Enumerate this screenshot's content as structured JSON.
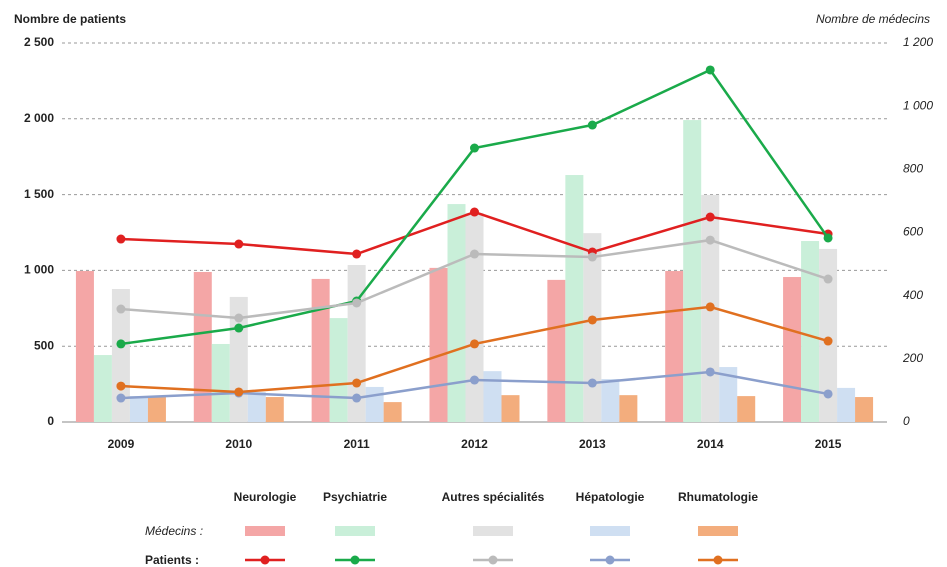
{
  "chart_data": {
    "type": "combo",
    "y_label": "Nombre de patients",
    "y2_label": "Nombre de médecins",
    "categories": [
      "2009",
      "2010",
      "2011",
      "2012",
      "2013",
      "2014",
      "2015"
    ],
    "ylim": [
      0,
      2500
    ],
    "yticks": [
      0,
      500,
      {
        "value": 1000,
        "label": "1 000"
      },
      {
        "value": 1500,
        "label": "1 500"
      },
      {
        "value": 2000,
        "label": "2 000"
      },
      {
        "value": 2500,
        "label": "2 500"
      }
    ],
    "y2lim": [
      0,
      1200
    ],
    "y2ticks": [
      0,
      200,
      400,
      600,
      800,
      {
        "value": 1000,
        "label": "1 000"
      },
      {
        "value": 1200,
        "label": "1 200"
      }
    ],
    "grid": true,
    "legend_rows": [
      "Médecins :",
      "Patients :"
    ],
    "series": [
      {
        "name": "Neurologie",
        "color": "#e02020",
        "bar_color": "#f4a6a6",
        "values": [
          1207,
          1174,
          1108,
          1385,
          1121,
          1352,
          1240
        ],
        "doctors": [
          478,
          475,
          453,
          488,
          450,
          478,
          459
        ]
      },
      {
        "name": "Psychiatrie",
        "color": "#1aaa4a",
        "bar_color": "#c9efd9",
        "values": [
          515,
          620,
          798,
          1807,
          1959,
          2322,
          1214
        ],
        "doctors": [
          212,
          247,
          329,
          690,
          782,
          956,
          573
        ]
      },
      {
        "name": "Autres spécialités",
        "color": "#bbbbbb",
        "bar_color": "#e2e2e2",
        "values": [
          745,
          686,
          785,
          1108,
          1088,
          1200,
          943
        ],
        "doctors": [
          421,
          396,
          497,
          662,
          598,
          719,
          548
        ]
      },
      {
        "name": "Hépatologie",
        "color": "#8b9fcc",
        "bar_color": "#cfdff2",
        "values": [
          158,
          191,
          158,
          277,
          257,
          330,
          185
        ],
        "doctors": [
          82,
          95,
          111,
          161,
          136,
          174,
          108
        ]
      },
      {
        "name": "Rhumatologie",
        "color": "#e07020",
        "bar_color": "#f3ad7d",
        "values": [
          237,
          198,
          257,
          515,
          673,
          759,
          534
        ],
        "doctors": [
          79,
          79,
          63,
          85,
          85,
          82,
          79
        ]
      }
    ]
  }
}
